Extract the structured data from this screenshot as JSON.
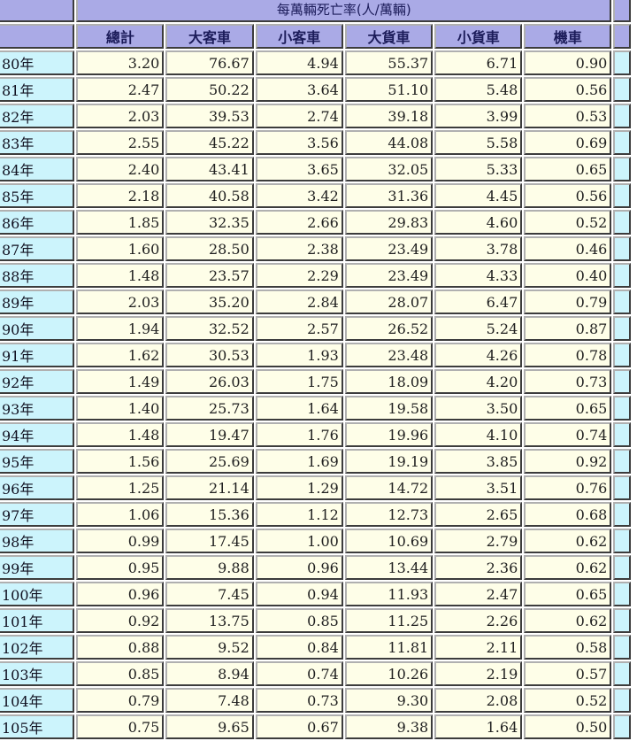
{
  "title": "每萬輛死亡率(人/萬輛)",
  "columns": [
    "總計",
    "大客車",
    "小客車",
    "大貨車",
    "小貨車",
    "機車"
  ],
  "rows": [
    {
      "year": "80年",
      "values": [
        "3.20",
        "76.67",
        "4.94",
        "55.37",
        "6.71",
        "0.90"
      ]
    },
    {
      "year": "81年",
      "values": [
        "2.47",
        "50.22",
        "3.64",
        "51.10",
        "5.48",
        "0.56"
      ]
    },
    {
      "year": "82年",
      "values": [
        "2.03",
        "39.53",
        "2.74",
        "39.18",
        "3.99",
        "0.53"
      ]
    },
    {
      "year": "83年",
      "values": [
        "2.55",
        "45.22",
        "3.56",
        "44.08",
        "5.58",
        "0.69"
      ]
    },
    {
      "year": "84年",
      "values": [
        "2.40",
        "43.41",
        "3.65",
        "32.05",
        "5.33",
        "0.65"
      ]
    },
    {
      "year": "85年",
      "values": [
        "2.18",
        "40.58",
        "3.42",
        "31.36",
        "4.45",
        "0.56"
      ]
    },
    {
      "year": "86年",
      "values": [
        "1.85",
        "32.35",
        "2.66",
        "29.83",
        "4.60",
        "0.52"
      ]
    },
    {
      "year": "87年",
      "values": [
        "1.60",
        "28.50",
        "2.38",
        "23.49",
        "3.78",
        "0.46"
      ]
    },
    {
      "year": "88年",
      "values": [
        "1.48",
        "23.57",
        "2.29",
        "23.49",
        "4.33",
        "0.40"
      ]
    },
    {
      "year": "89年",
      "values": [
        "2.03",
        "35.20",
        "2.84",
        "28.07",
        "6.47",
        "0.79"
      ]
    },
    {
      "year": "90年",
      "values": [
        "1.94",
        "32.52",
        "2.57",
        "26.52",
        "5.24",
        "0.87"
      ]
    },
    {
      "year": "91年",
      "values": [
        "1.62",
        "30.53",
        "1.93",
        "23.48",
        "4.26",
        "0.78"
      ]
    },
    {
      "year": "92年",
      "values": [
        "1.49",
        "26.03",
        "1.75",
        "18.09",
        "4.20",
        "0.73"
      ]
    },
    {
      "year": "93年",
      "values": [
        "1.40",
        "25.73",
        "1.64",
        "19.58",
        "3.50",
        "0.65"
      ]
    },
    {
      "year": "94年",
      "values": [
        "1.48",
        "19.47",
        "1.76",
        "19.96",
        "4.10",
        "0.74"
      ]
    },
    {
      "year": "95年",
      "values": [
        "1.56",
        "25.69",
        "1.69",
        "19.19",
        "3.85",
        "0.92"
      ]
    },
    {
      "year": "96年",
      "values": [
        "1.25",
        "21.14",
        "1.29",
        "14.72",
        "3.51",
        "0.76"
      ]
    },
    {
      "year": "97年",
      "values": [
        "1.06",
        "15.36",
        "1.12",
        "12.73",
        "2.65",
        "0.68"
      ]
    },
    {
      "year": "98年",
      "values": [
        "0.99",
        "17.45",
        "1.00",
        "10.69",
        "2.79",
        "0.62"
      ]
    },
    {
      "year": "99年",
      "values": [
        "0.95",
        "9.88",
        "0.96",
        "13.44",
        "2.36",
        "0.62"
      ]
    },
    {
      "year": "100年",
      "values": [
        "0.96",
        "7.45",
        "0.94",
        "11.93",
        "2.47",
        "0.65"
      ]
    },
    {
      "year": "101年",
      "values": [
        "0.92",
        "13.75",
        "0.85",
        "11.25",
        "2.26",
        "0.62"
      ]
    },
    {
      "year": "102年",
      "values": [
        "0.88",
        "9.52",
        "0.84",
        "11.81",
        "2.11",
        "0.58"
      ]
    },
    {
      "year": "103年",
      "values": [
        "0.85",
        "8.94",
        "0.74",
        "10.26",
        "2.19",
        "0.57"
      ]
    },
    {
      "year": "104年",
      "values": [
        "0.79",
        "7.48",
        "0.73",
        "9.30",
        "2.08",
        "0.52"
      ]
    },
    {
      "year": "105年",
      "values": [
        "0.75",
        "9.65",
        "0.67",
        "9.38",
        "1.64",
        "0.50"
      ]
    }
  ]
}
